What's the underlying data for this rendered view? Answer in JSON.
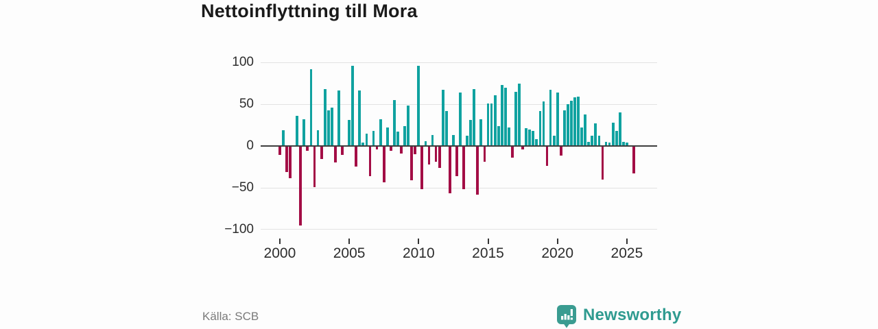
{
  "title": "Nettoinflyttning till Mora",
  "source": "Källa: SCB",
  "branding": {
    "name": "Newsworthy",
    "color": "#2f9b90"
  },
  "colors": {
    "positive_bar": "#10a2a0",
    "negative_bar": "#a30d45",
    "gridline": "#e2e2e2",
    "zero_line": "#3d3d3d",
    "axis_text": "#2d2d2d",
    "title_text": "#1a1a1a",
    "source_text": "#7a7a7a"
  },
  "chart_data": {
    "type": "bar",
    "title": "Nettoinflyttning till Mora",
    "xlabel": "",
    "ylabel": "",
    "x_start": "2000 Q1",
    "frequency": "quarterly",
    "values": [
      -10,
      19,
      -30,
      -38,
      0,
      36,
      -94,
      32,
      -5,
      92,
      -48,
      19,
      -15,
      68,
      43,
      46,
      -19,
      66,
      -10,
      0,
      31,
      96,
      -24,
      66,
      4,
      15,
      -35,
      18,
      -3,
      32,
      -43,
      22,
      -5,
      55,
      17,
      -8,
      24,
      48,
      -40,
      -9,
      96,
      -51,
      6,
      -21,
      13,
      -18,
      -25,
      67,
      42,
      -56,
      13,
      -35,
      64,
      -51,
      12,
      31,
      68,
      -57,
      32,
      -18,
      51,
      51,
      61,
      24,
      73,
      70,
      22,
      -13,
      65,
      75,
      -3,
      21,
      20,
      18,
      8,
      42,
      53,
      -23,
      67,
      12,
      64,
      -11,
      43,
      50,
      54,
      58,
      59,
      22,
      38,
      5,
      12,
      27,
      12,
      -39,
      5,
      4,
      28,
      18,
      40,
      5,
      4,
      0,
      -32
    ],
    "xticks": [
      2000,
      2005,
      2010,
      2015,
      2020,
      2025
    ],
    "yticks": [
      100,
      50,
      0,
      -50,
      -100
    ],
    "ylim": [
      -100,
      100
    ],
    "grid": true,
    "legend": "none",
    "bar_color_rule": "teal when value >= 0, crimson when value < 0"
  }
}
